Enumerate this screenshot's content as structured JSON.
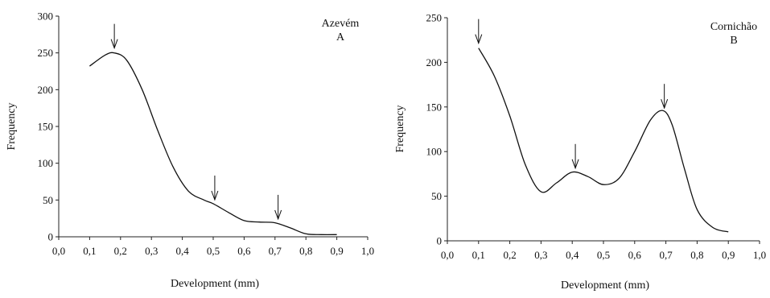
{
  "chart_data": [
    {
      "type": "line",
      "title": "Azevém",
      "subtitle": "A",
      "xlabel": "Development  (mm)",
      "ylabel": "Frequency",
      "xlim": [
        0,
        1
      ],
      "ylim": [
        0,
        300
      ],
      "xticks": [
        "0,0",
        "0,1",
        "0,2",
        "0,3",
        "0,4",
        "0,5",
        "0,6",
        "0,7",
        "0,8",
        "0,9",
        "1,0"
      ],
      "yticks": [
        "0",
        "50",
        "100",
        "150",
        "200",
        "250",
        "300"
      ],
      "x": [
        0.1,
        0.15,
        0.18,
        0.22,
        0.27,
        0.32,
        0.37,
        0.42,
        0.47,
        0.5,
        0.55,
        0.6,
        0.65,
        0.7,
        0.75,
        0.8,
        0.85,
        0.9
      ],
      "series": [
        {
          "values": [
            232,
            247,
            250,
            240,
            200,
            145,
            95,
            62,
            50,
            45,
            33,
            22,
            20,
            19,
            12,
            4,
            3,
            3
          ]
        }
      ],
      "arrows_at": [
        0.18,
        0.505,
        0.71
      ],
      "grid": false
    },
    {
      "type": "line",
      "title": "Cornichão",
      "subtitle": "B",
      "xlabel": "Development (mm)",
      "ylabel": "Frequency",
      "xlim": [
        0,
        1
      ],
      "ylim": [
        0,
        250
      ],
      "xticks": [
        "0,0",
        "0,1",
        "0,2",
        "0,3",
        "0,4",
        "0,5",
        "0,6",
        "0,7",
        "0,8",
        "0,9",
        "1,0"
      ],
      "yticks": [
        "0",
        "50",
        "100",
        "150",
        "200",
        "250"
      ],
      "x": [
        0.1,
        0.15,
        0.2,
        0.25,
        0.3,
        0.35,
        0.4,
        0.45,
        0.5,
        0.55,
        0.6,
        0.65,
        0.69,
        0.72,
        0.76,
        0.8,
        0.85,
        0.9
      ],
      "series": [
        {
          "values": [
            216,
            185,
            140,
            85,
            55,
            65,
            77,
            72,
            63,
            70,
            100,
            135,
            146,
            130,
            80,
            35,
            15,
            10
          ]
        }
      ],
      "arrows_at": [
        0.1,
        0.41,
        0.695
      ],
      "grid": false
    }
  ]
}
